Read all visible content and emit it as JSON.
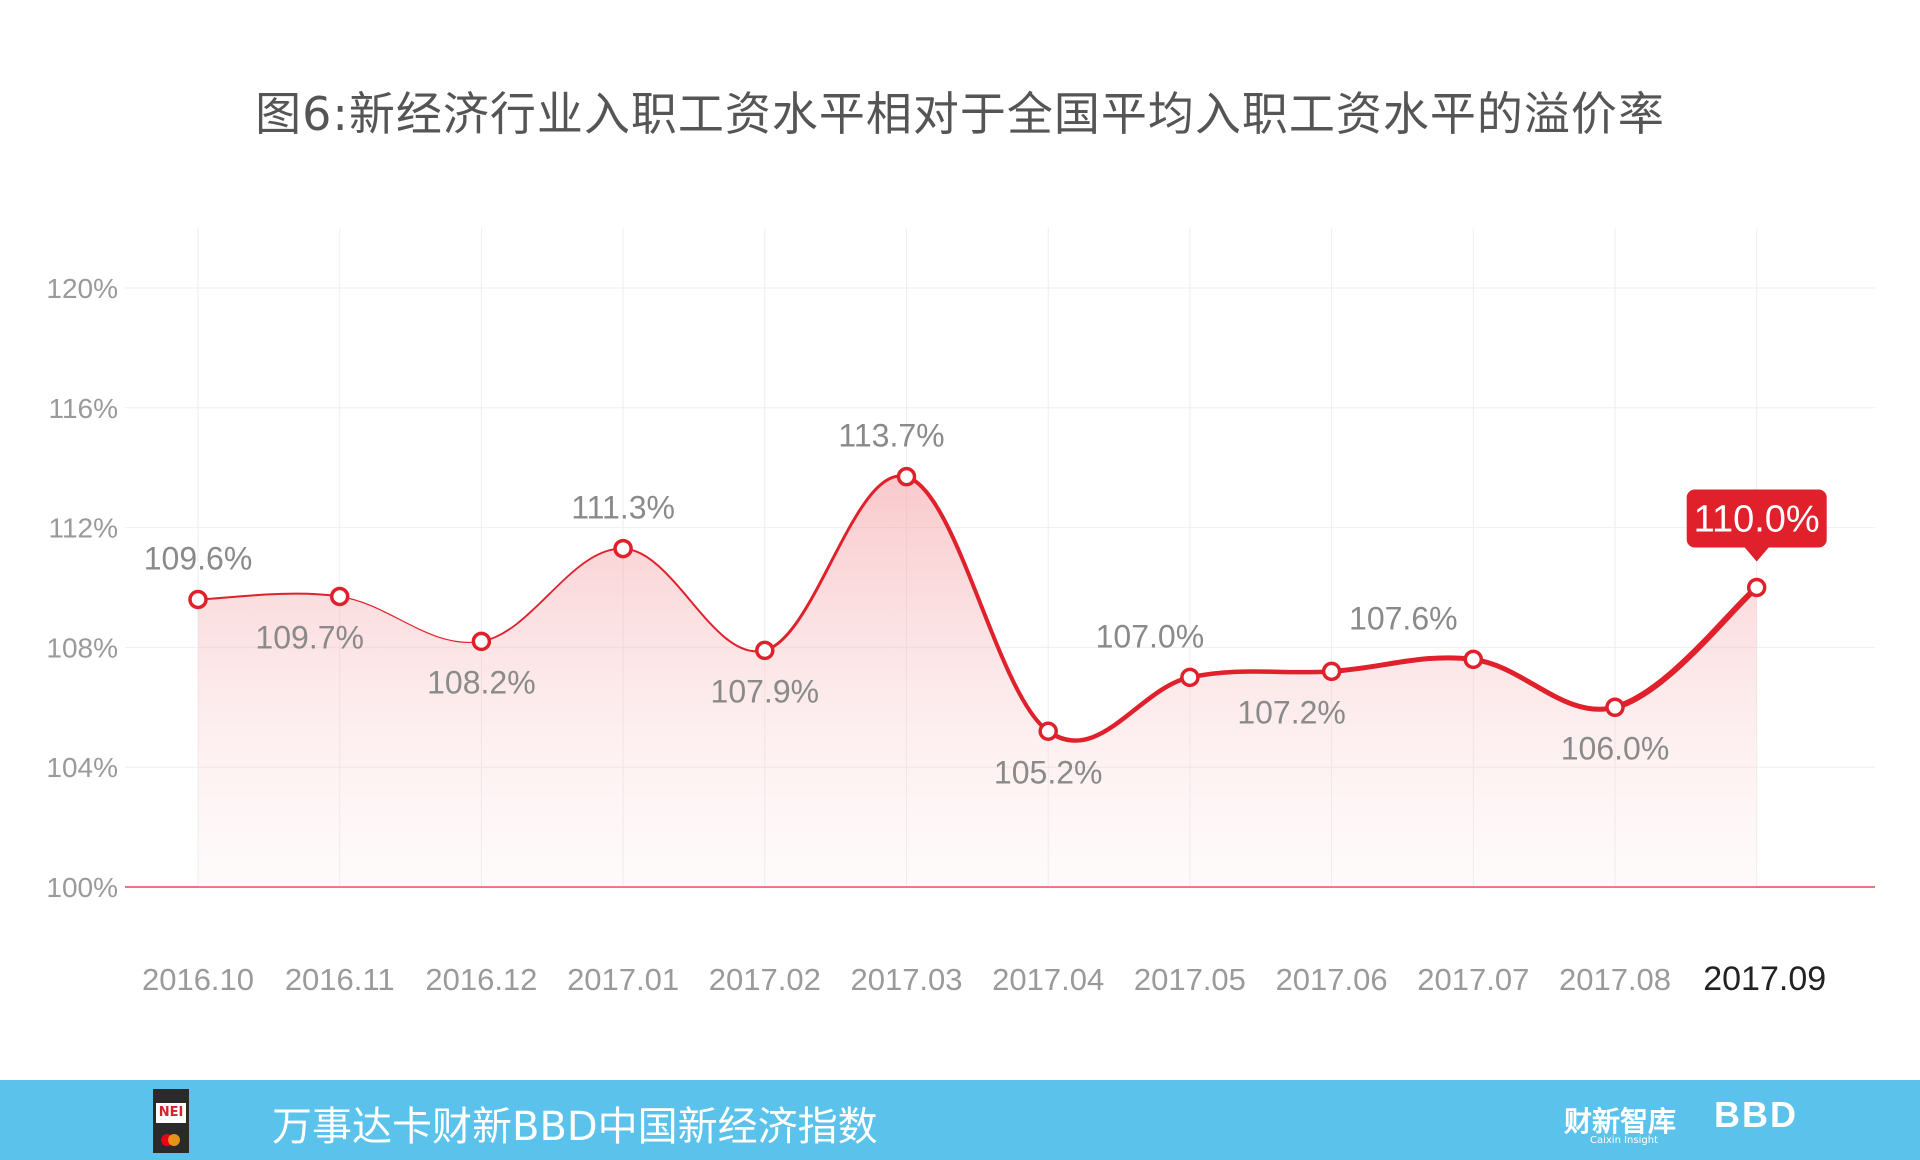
{
  "title": "图6:新经济行业入职工资水平相对于全国平均入职工资水平的溢价率",
  "chart_data": {
    "type": "line",
    "categories": [
      "2016.10",
      "2016.11",
      "2016.12",
      "2017.01",
      "2017.02",
      "2017.03",
      "2017.04",
      "2017.05",
      "2017.06",
      "2017.07",
      "2017.08",
      "2017.09"
    ],
    "values": [
      109.6,
      109.7,
      108.2,
      111.3,
      107.9,
      113.7,
      105.2,
      107.0,
      107.2,
      107.6,
      106.0,
      110.0
    ],
    "data_labels": [
      "109.6%",
      "109.7%",
      "108.2%",
      "111.3%",
      "107.9%",
      "113.7%",
      "105.2%",
      "107.0%",
      "107.2%",
      "107.6%",
      "106.0%",
      "110.0%"
    ],
    "y_ticks": [
      100,
      104,
      108,
      112,
      116,
      120
    ],
    "y_tick_labels": [
      "100%",
      "104%",
      "108%",
      "112%",
      "116%",
      "120%"
    ],
    "ylim": [
      100,
      120
    ],
    "grid": true,
    "highlight_index": 11,
    "colors": {
      "line": "#e0202b",
      "fill": "#f7c3c6",
      "highlight_bg": "#e0202b",
      "label": "#8a8a8a",
      "axis_label": "#9a9a9a",
      "axis_highlight": "#222222",
      "baseline": "#e0202b",
      "grid": "#eeeeee"
    }
  },
  "footer": {
    "logo_text": "NEI",
    "text": "万事达卡财新BBD中国新经济指数",
    "brand": "财新智库",
    "brand_sub": "Caixin Insight",
    "bbd": "BBD"
  }
}
